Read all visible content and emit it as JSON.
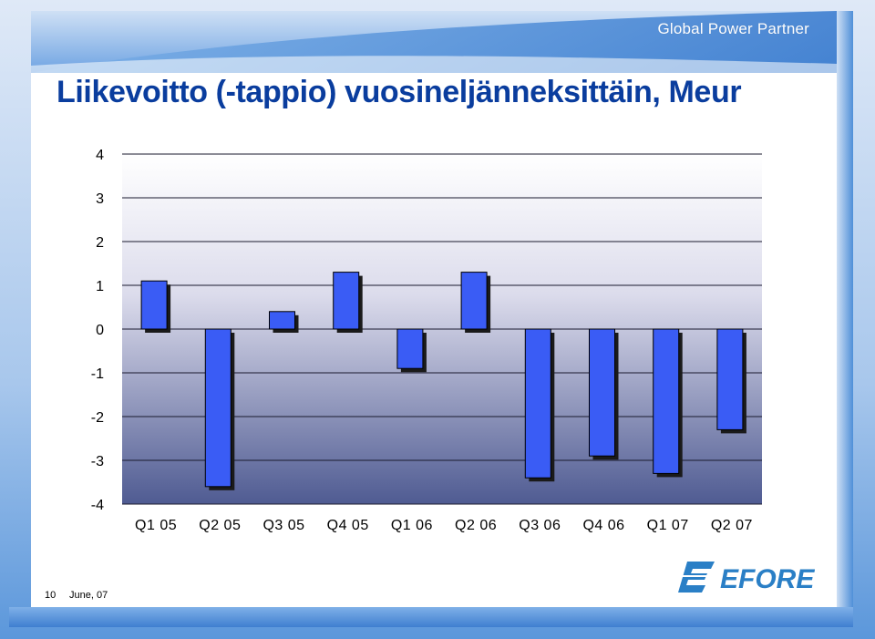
{
  "header": {
    "brand": "Global Power Partner",
    "title": "Liikevoitto (-tappio) vuosineljänneksittäin, Meur"
  },
  "footer": {
    "page_number": "10",
    "date": "June, 07"
  },
  "logo": {
    "text": "EFORE"
  },
  "colors": {
    "bar_fill": "#3a5cf5",
    "bar_shadow": "#1a1a1a",
    "title": "#0a3d9e",
    "accent": "#5b97db"
  },
  "chart_data": {
    "type": "bar",
    "title": "Liikevoitto (-tappio) vuosineljänneksittäin, Meur",
    "xlabel": "",
    "ylabel": "",
    "categories": [
      "Q1 05",
      "Q2 05",
      "Q3 05",
      "Q4 05",
      "Q1 06",
      "Q2 06",
      "Q3 06",
      "Q4 06",
      "Q1 07",
      "Q2 07"
    ],
    "values": [
      1.1,
      -3.6,
      0.4,
      1.3,
      -0.9,
      1.3,
      -3.4,
      -2.9,
      -3.3,
      -2.3
    ],
    "ylim": [
      -4,
      4
    ],
    "yticks": [
      "4",
      "3",
      "2",
      "1",
      "0",
      "-1",
      "-2",
      "-3",
      "-4"
    ],
    "grid": true,
    "legend": "none"
  }
}
